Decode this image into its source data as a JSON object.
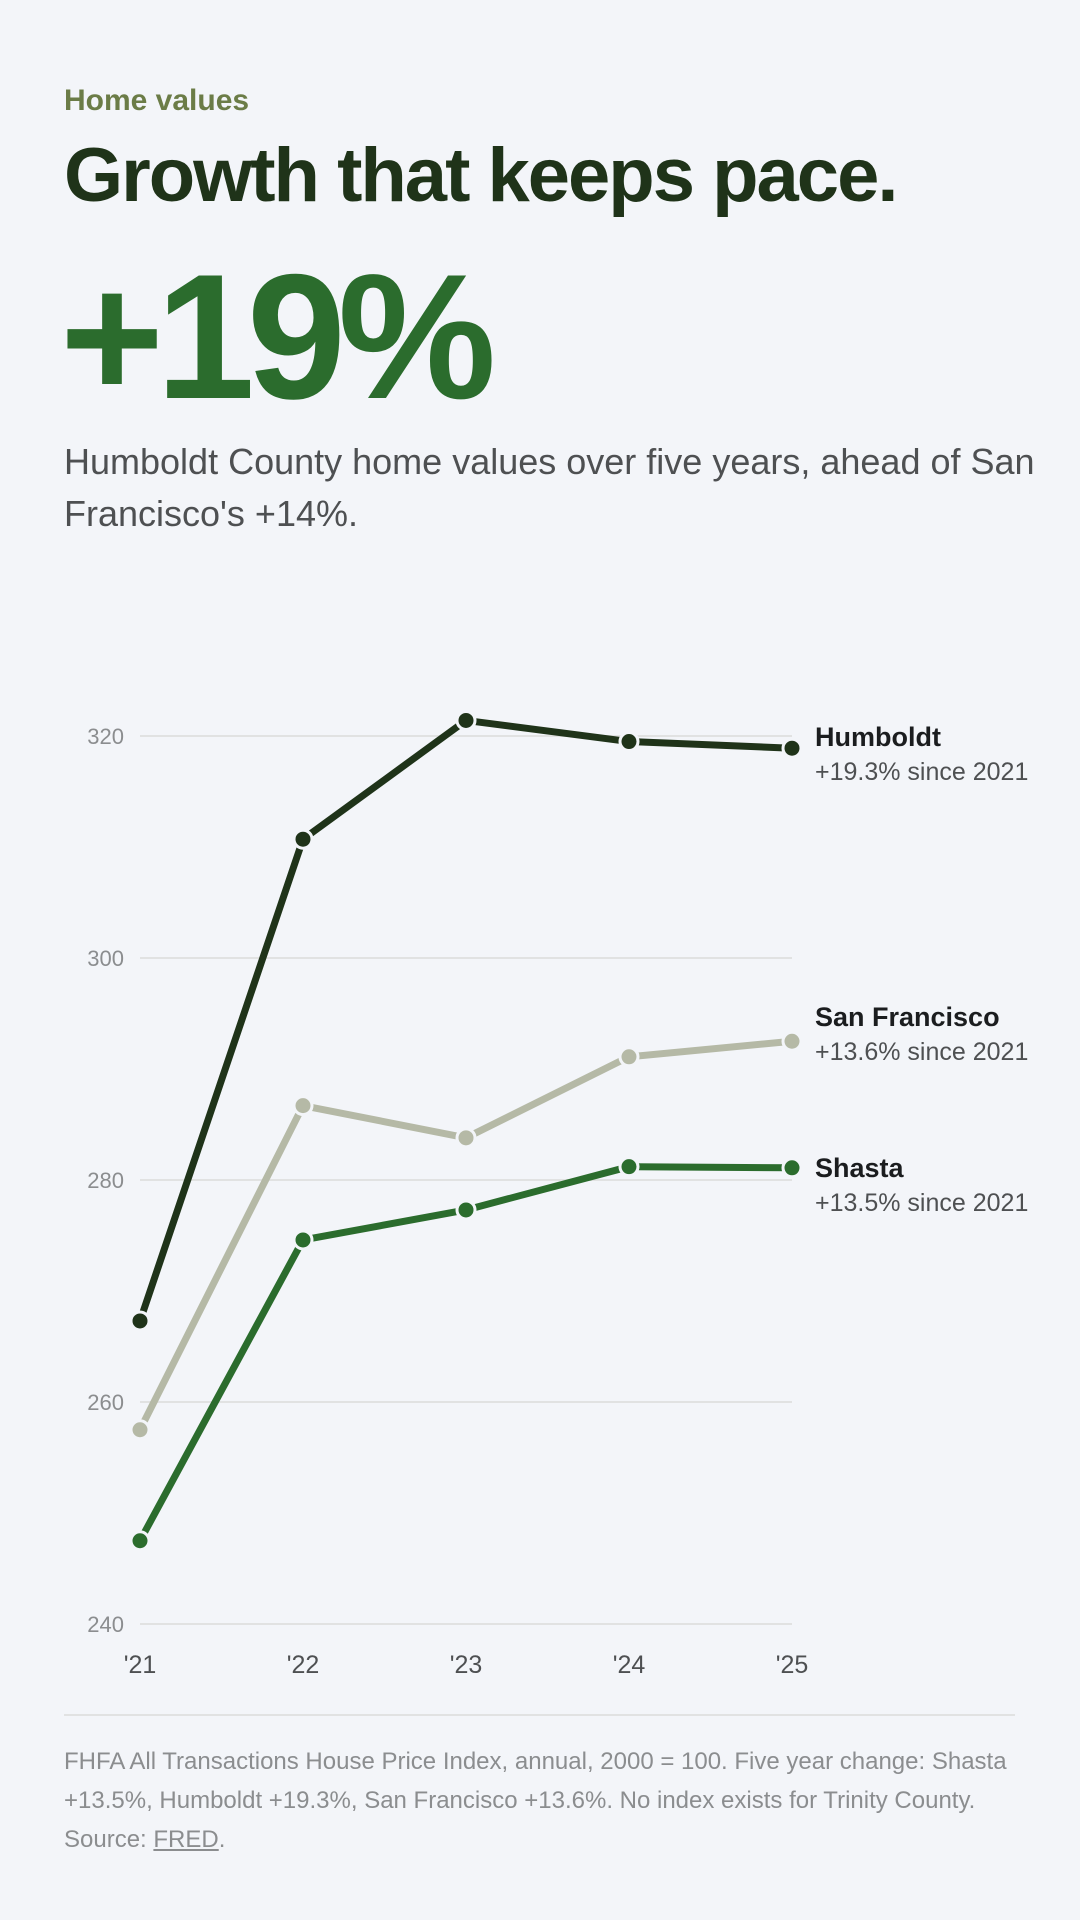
{
  "header": {
    "eyebrow": "Home values",
    "headline": "Growth that keeps pace.",
    "big_stat": "+19%",
    "lede": "Humboldt County home values over five years, ahead of San Francisco's +14%."
  },
  "colors": {
    "background": "#f3f5f9",
    "eyebrow": "#6b7c47",
    "headline": "#1f3319",
    "accent": "#2b6c2d",
    "grid": "#e1e2e2"
  },
  "chart_data": {
    "type": "line",
    "title": "",
    "xlabel": "",
    "ylabel": "",
    "x": [
      "'21",
      "'22",
      "'23",
      "'24",
      "'25"
    ],
    "ylim": [
      240,
      320
    ],
    "yticks": [
      240,
      260,
      280,
      300,
      320
    ],
    "grid": true,
    "legend": "direct labels at right end of each line",
    "series": [
      {
        "name": "Humboldt",
        "note": "+19.3% since 2021",
        "color": "#1f3319",
        "values": [
          267.3,
          310.7,
          321.4,
          319.5,
          318.9
        ]
      },
      {
        "name": "San Francisco",
        "note": "+13.6% since 2021",
        "color": "#b5b9a6",
        "values": [
          257.5,
          286.7,
          283.8,
          291.1,
          292.5
        ]
      },
      {
        "name": "Shasta",
        "note": "+13.5% since 2021",
        "color": "#2b6c2d",
        "values": [
          247.5,
          274.6,
          277.3,
          281.2,
          281.1
        ]
      }
    ]
  },
  "footer": {
    "note_text": "FHFA All Transactions House Price Index, annual, 2000 = 100. Five year change: Shasta +13.5%, Humboldt +19.3%, San Francisco +13.6%. No index exists for Trinity County. Source: ",
    "source_link": "FRED",
    "end_punct": "."
  }
}
